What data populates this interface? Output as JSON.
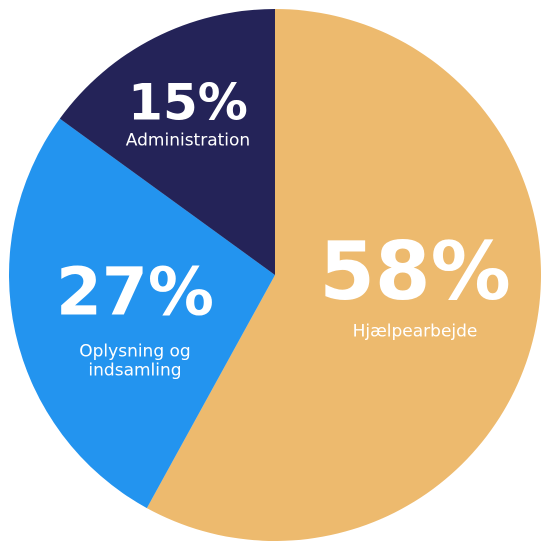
{
  "chart_data": {
    "type": "pie",
    "categories": [
      "Hjælpearbejde",
      "Oplysning og indsamling",
      "Administration"
    ],
    "values": [
      58,
      27,
      15
    ],
    "value_labels": [
      "58%",
      "27%",
      "15%"
    ],
    "colors": [
      "#edba6e",
      "#2394ef",
      "#242358"
    ]
  }
}
